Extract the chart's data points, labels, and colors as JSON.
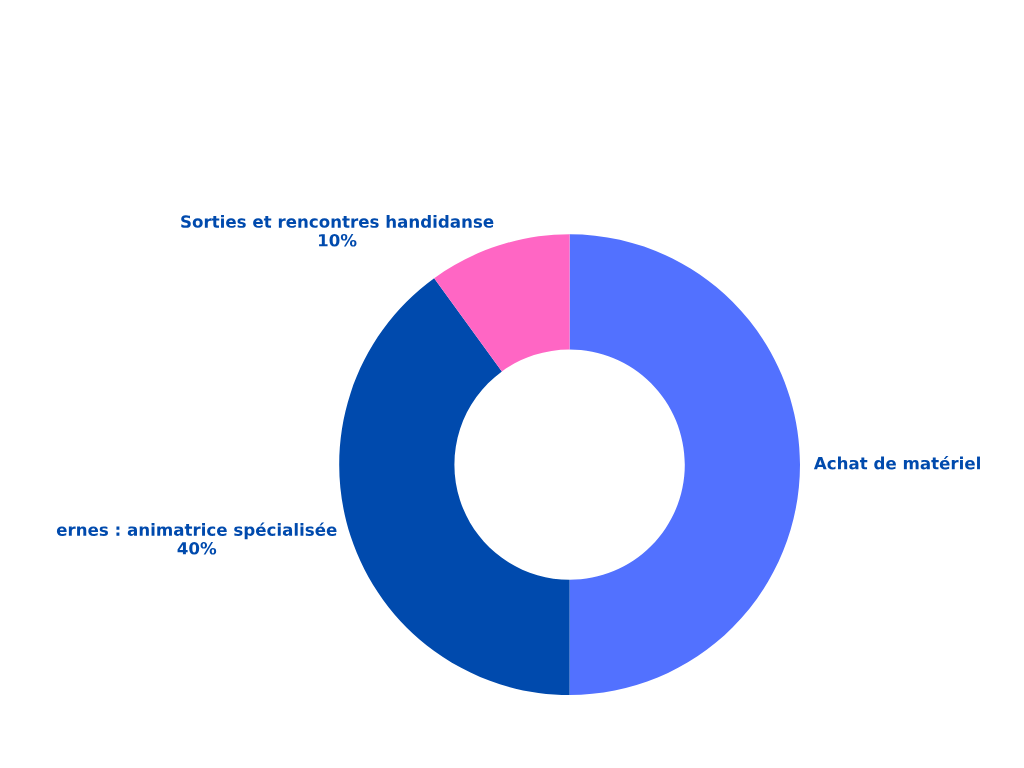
{
  "chart_data": {
    "type": "donut",
    "categories": [
      "Achat de matériel",
      "ernes : animatrice spécialisée",
      "Sorties et rencontres handidanse"
    ],
    "values": [
      50,
      40,
      10
    ],
    "colors": [
      "#5271ff",
      "#004aad",
      "#ff66c4"
    ],
    "value_labels": [
      null,
      "40%",
      "10%"
    ]
  }
}
